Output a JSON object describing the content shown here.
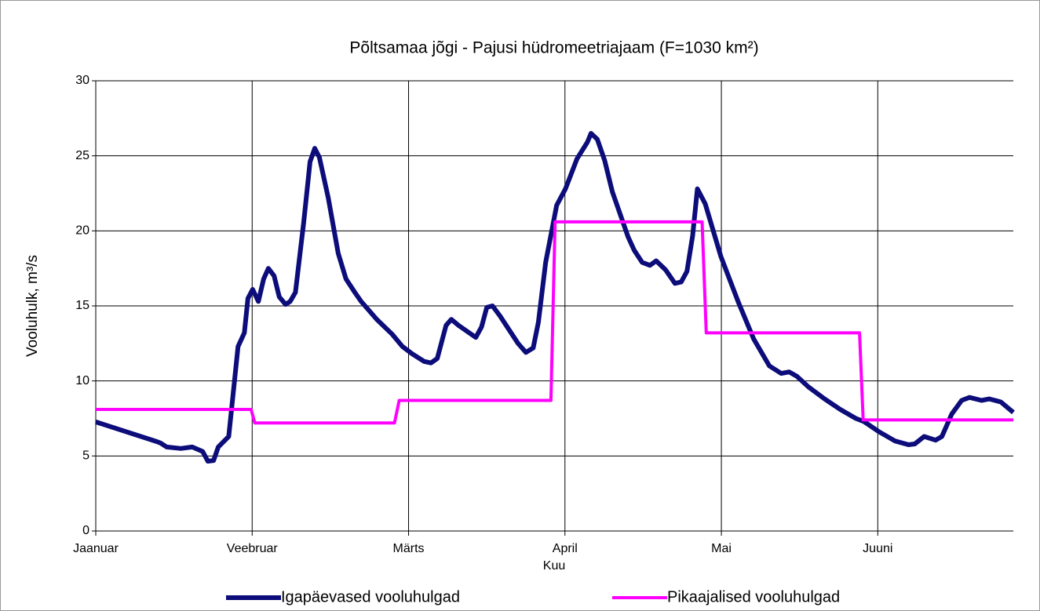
{
  "chart_data": {
    "type": "line",
    "title": "Põltsamaa jõgi - Pajusi hüdromeetriajaam (F=1030 km²)",
    "x_label": "Kuu",
    "y_label": "Vooluhulk, m³/s",
    "xlim": [
      0,
      176
    ],
    "xticks": [
      {
        "value": 0,
        "label": "Jaanuar"
      },
      {
        "value": 30,
        "label": "Veebruar"
      },
      {
        "value": 60,
        "label": "Märts"
      },
      {
        "value": 90,
        "label": "April"
      },
      {
        "value": 120,
        "label": "Mai"
      },
      {
        "value": 150,
        "label": "Juuni"
      }
    ],
    "ylim": [
      0,
      30
    ],
    "yticks": [
      0,
      5,
      10,
      15,
      20,
      25,
      30
    ],
    "grid": true,
    "legend": "bottom",
    "series": [
      {
        "name": "Igapäevased vooluhulgad",
        "color": "#0c0c7a",
        "x": [
          0,
          11.7,
          12.5,
          13.6,
          16.3,
          18.5,
          20.5,
          21.5,
          22.6,
          23.5,
          25.5,
          27.3,
          28.5,
          29.2,
          30.1,
          31.2,
          32.2,
          33.1,
          34.2,
          35.2,
          36.4,
          37.3,
          38.3,
          39.9,
          41.1,
          42,
          42.9,
          44.6,
          46.5,
          48,
          49.7,
          50.9,
          53.9,
          56.9,
          58.8,
          60.7,
          63,
          64.3,
          65.5,
          67.2,
          68.2,
          69.6,
          72.9,
          74,
          75,
          76.1,
          77.6,
          81,
          82.5,
          83.9,
          84.9,
          86.3,
          88.4,
          90.1,
          92.3,
          94.3,
          95,
          96.2,
          97.6,
          99.1,
          102.1,
          103.3,
          104.8,
          106.3,
          107.5,
          109.3,
          111.1,
          112.3,
          113.4,
          114.5,
          115.4,
          116.9,
          119.9,
          123.2,
          126.2,
          129.2,
          131.5,
          133,
          134.5,
          136.7,
          139.8,
          142.8,
          145.8,
          147.3,
          150.3,
          153.3,
          155.9,
          157.1,
          158.9,
          161.1,
          162.3,
          164.2,
          166.1,
          167.6,
          169.9,
          171.4,
          173.6,
          176
        ],
        "values": [
          7.27,
          5.96,
          5.85,
          5.6,
          5.5,
          5.6,
          5.3,
          4.65,
          4.7,
          5.6,
          6.3,
          12.3,
          13.2,
          15.5,
          16.1,
          15.3,
          16.8,
          17.5,
          17,
          15.6,
          15.1,
          15.3,
          15.9,
          20.6,
          24.6,
          25.5,
          24.9,
          22.2,
          18.5,
          16.8,
          15.9,
          15.3,
          14.1,
          13.1,
          12.3,
          11.8,
          11.3,
          11.2,
          11.5,
          13.7,
          14.1,
          13.7,
          12.9,
          13.6,
          14.9,
          15,
          14.3,
          12.5,
          11.9,
          12.2,
          13.9,
          17.9,
          21.7,
          22.8,
          24.8,
          25.9,
          26.5,
          26.1,
          24.7,
          22.6,
          19.6,
          18.7,
          17.9,
          17.7,
          18,
          17.4,
          16.5,
          16.6,
          17.3,
          19.7,
          22.8,
          21.8,
          18.3,
          15.3,
          12.8,
          11,
          10.5,
          10.6,
          10.3,
          9.6,
          8.8,
          8.1,
          7.5,
          7.3,
          6.6,
          6,
          5.75,
          5.8,
          6.3,
          6.05,
          6.3,
          7.8,
          8.7,
          8.9,
          8.7,
          8.8,
          8.6,
          7.9
        ]
      },
      {
        "name": "Pikaajalised vooluhulgad",
        "color": "#ff00ff",
        "x": [
          0,
          29.8,
          30.5,
          57.3,
          58.2,
          87.3,
          88.1,
          116.3,
          117.1,
          146.5,
          147.2,
          176
        ],
        "values": [
          8.1,
          8.1,
          7.2,
          7.2,
          8.7,
          8.7,
          20.6,
          20.6,
          13.2,
          13.2,
          7.4,
          7.4
        ]
      }
    ]
  }
}
